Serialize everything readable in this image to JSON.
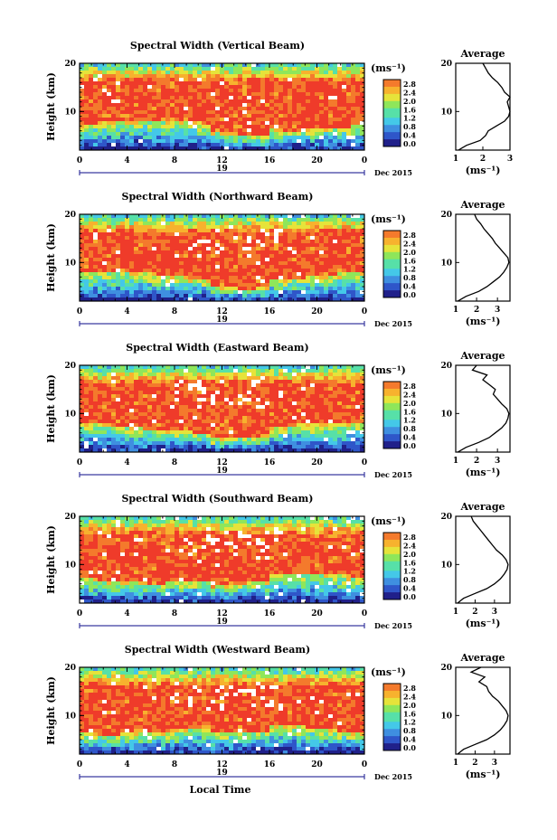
{
  "figure": {
    "date_label": "Dec 2015",
    "xlabel": "Local Time",
    "ylabel": "Height (km)",
    "colorbar_unit": "(ms⁻¹)",
    "profile_title": "Average",
    "profile_xlabel": "(ms⁻¹)",
    "colormap": [
      "#20208a",
      "#2f56c9",
      "#3f8fe0",
      "#44c8e8",
      "#57e0a8",
      "#8fe65a",
      "#e6e33a",
      "#f7b22e",
      "#f47a2c",
      "#ef3b2a"
    ]
  },
  "chart_data": [
    {
      "type": "heatmap",
      "title": "Spectral Width (Vertical Beam)",
      "x_ticks": [
        "0",
        "4",
        "8",
        "12",
        "16",
        "20",
        "0"
      ],
      "x_range": [
        0,
        24
      ],
      "date_tick": "19",
      "y_ticks": [
        "20",
        "10"
      ],
      "ylim": [
        2,
        20
      ],
      "ylabel": "Height (km)",
      "colorbar": {
        "ticks": [
          "2.8",
          "2.4",
          "2.0",
          "1.6",
          "1.2",
          "0.8",
          "0.4",
          "0.0"
        ],
        "range": [
          0,
          2.8
        ]
      },
      "profile": {
        "title": "Average",
        "xlim": [
          1,
          3
        ],
        "x_ticks": [
          "1",
          "2",
          "3"
        ],
        "height": [
          2,
          3,
          4,
          5,
          6,
          7,
          8,
          9,
          10,
          11,
          12,
          13,
          14,
          15,
          16,
          17,
          18,
          19,
          20
        ],
        "values": [
          1.1,
          1.4,
          1.9,
          2.1,
          2.2,
          2.5,
          2.8,
          2.95,
          3.0,
          2.95,
          2.9,
          3.0,
          2.8,
          2.7,
          2.55,
          2.35,
          2.2,
          2.1,
          2.0
        ]
      }
    },
    {
      "type": "heatmap",
      "title": "Spectral Width (Northward Beam)",
      "x_ticks": [
        "0",
        "4",
        "8",
        "12",
        "16",
        "20",
        "0"
      ],
      "x_range": [
        0,
        24
      ],
      "date_tick": "19",
      "y_ticks": [
        "20",
        "10"
      ],
      "ylim": [
        2,
        20
      ],
      "ylabel": "Height (km)",
      "colorbar": {
        "ticks": [
          "2.8",
          "2.4",
          "2.0",
          "1.6",
          "1.2",
          "0.8",
          "0.4",
          "0.0"
        ],
        "range": [
          0,
          2.8
        ]
      },
      "profile": {
        "title": "Average",
        "xlim": [
          1,
          3.6
        ],
        "x_ticks": [
          "1",
          "2",
          "3"
        ],
        "height": [
          2,
          3,
          4,
          5,
          6,
          7,
          8,
          9,
          10,
          11,
          12,
          13,
          14,
          15,
          16,
          17,
          18,
          19,
          20
        ],
        "values": [
          1.1,
          1.5,
          2.1,
          2.5,
          2.8,
          3.1,
          3.3,
          3.45,
          3.55,
          3.5,
          3.3,
          3.1,
          2.9,
          2.75,
          2.55,
          2.35,
          2.2,
          2.0,
          1.9
        ]
      }
    },
    {
      "type": "heatmap",
      "title": "Spectral Width (Eastward Beam)",
      "x_ticks": [
        "0",
        "4",
        "8",
        "12",
        "16",
        "20",
        "0"
      ],
      "x_range": [
        0,
        24
      ],
      "date_tick": "19",
      "y_ticks": [
        "20",
        "10"
      ],
      "ylim": [
        2,
        20
      ],
      "ylabel": "Height (km)",
      "colorbar": {
        "ticks": [
          "2.8",
          "2.4",
          "2.0",
          "1.6",
          "1.2",
          "0.8",
          "0.4",
          "0.0"
        ],
        "range": [
          0,
          2.8
        ]
      },
      "profile": {
        "title": "Average",
        "xlim": [
          1,
          3.6
        ],
        "x_ticks": [
          "1",
          "2",
          "3"
        ],
        "height": [
          2,
          3,
          4,
          5,
          6,
          7,
          8,
          9,
          10,
          11,
          12,
          13,
          14,
          15,
          16,
          17,
          18,
          19,
          20
        ],
        "values": [
          1.1,
          1.5,
          2.1,
          2.6,
          2.9,
          3.2,
          3.4,
          3.5,
          3.55,
          3.45,
          3.2,
          3.0,
          2.8,
          2.9,
          2.6,
          2.3,
          2.5,
          1.8,
          2.0
        ]
      }
    },
    {
      "type": "heatmap",
      "title": "Spectral Width (Southward Beam)",
      "x_ticks": [
        "0",
        "4",
        "8",
        "12",
        "16",
        "20",
        "0"
      ],
      "x_range": [
        0,
        24
      ],
      "date_tick": "19",
      "y_ticks": [
        "20",
        "10"
      ],
      "ylim": [
        2,
        20
      ],
      "ylabel": "Height (km)",
      "colorbar": {
        "ticks": [
          "2.8",
          "2.4",
          "2.0",
          "1.6",
          "1.2",
          "0.8",
          "0.4",
          "0.0"
        ],
        "range": [
          0,
          2.8
        ]
      },
      "profile": {
        "title": "Average",
        "xlim": [
          1,
          3.8
        ],
        "x_ticks": [
          "1",
          "2",
          "3"
        ],
        "height": [
          2,
          3,
          4,
          5,
          6,
          7,
          8,
          9,
          10,
          11,
          12,
          13,
          14,
          15,
          16,
          17,
          18,
          19,
          20
        ],
        "values": [
          1.1,
          1.4,
          2.0,
          2.6,
          3.0,
          3.3,
          3.5,
          3.65,
          3.7,
          3.6,
          3.4,
          3.1,
          2.9,
          2.7,
          2.5,
          2.3,
          2.1,
          1.9,
          1.8
        ]
      }
    },
    {
      "type": "heatmap",
      "title": "Spectral Width (Westward Beam)",
      "x_ticks": [
        "0",
        "4",
        "8",
        "12",
        "16",
        "20",
        "0"
      ],
      "x_range": [
        0,
        24
      ],
      "date_tick": "19",
      "y_ticks": [
        "20",
        "10"
      ],
      "ylim": [
        2,
        20
      ],
      "ylabel": "Height (km)",
      "colorbar": {
        "ticks": [
          "2.8",
          "2.4",
          "2.0",
          "1.6",
          "1.2",
          "0.8",
          "0.4",
          "0.0"
        ],
        "range": [
          0,
          2.8
        ]
      },
      "profile": {
        "title": "Average",
        "xlim": [
          1,
          3.8
        ],
        "x_ticks": [
          "1",
          "2",
          "3"
        ],
        "height": [
          2,
          3,
          4,
          5,
          6,
          7,
          8,
          9,
          10,
          11,
          12,
          13,
          14,
          15,
          16,
          17,
          18,
          19,
          20
        ],
        "values": [
          1.1,
          1.4,
          2.0,
          2.6,
          3.0,
          3.3,
          3.5,
          3.65,
          3.7,
          3.6,
          3.4,
          3.2,
          2.9,
          2.7,
          2.6,
          2.2,
          2.5,
          1.8,
          2.3
        ]
      }
    }
  ]
}
